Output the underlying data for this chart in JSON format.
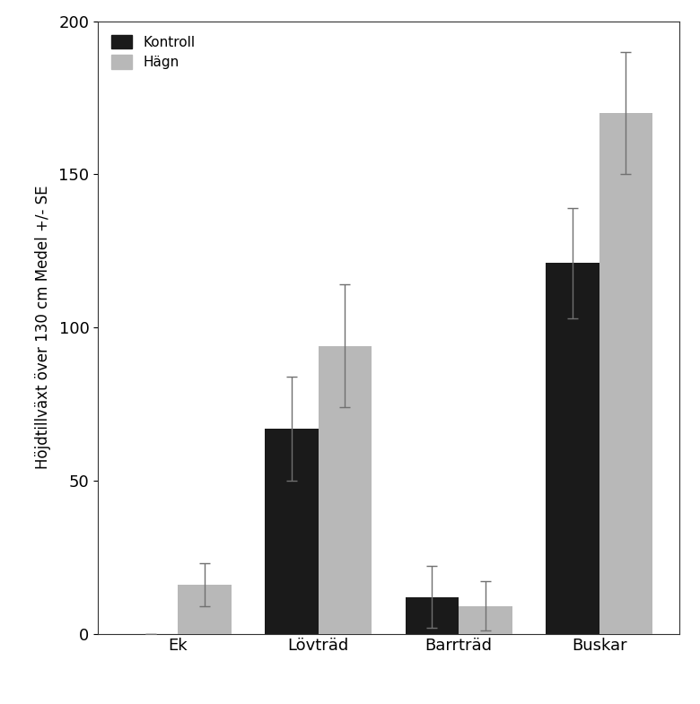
{
  "categories": [
    "Ek",
    "Lövträd",
    "Barrträd",
    "Buskar"
  ],
  "kontroll_values": [
    0,
    67,
    12,
    121
  ],
  "hagn_values": [
    16,
    94,
    9,
    170
  ],
  "kontroll_errors": [
    0,
    17,
    10,
    18
  ],
  "hagn_errors": [
    7,
    20,
    8,
    20
  ],
  "kontroll_color": "#1a1a1a",
  "hagn_color": "#b8b8b8",
  "ylabel": "Höjdtillväxt över 130 cm Medel +/- SE",
  "ylim": [
    0,
    200
  ],
  "yticks": [
    0,
    50,
    100,
    150,
    200
  ],
  "legend_kontroll": "Kontroll",
  "legend_hagn": "Hägn",
  "bar_width": 0.38,
  "figsize": [
    7.8,
    7.85
  ],
  "dpi": 100,
  "background_color": "#ffffff",
  "error_capsize": 4,
  "error_color": "#707070",
  "error_linewidth": 1.0
}
